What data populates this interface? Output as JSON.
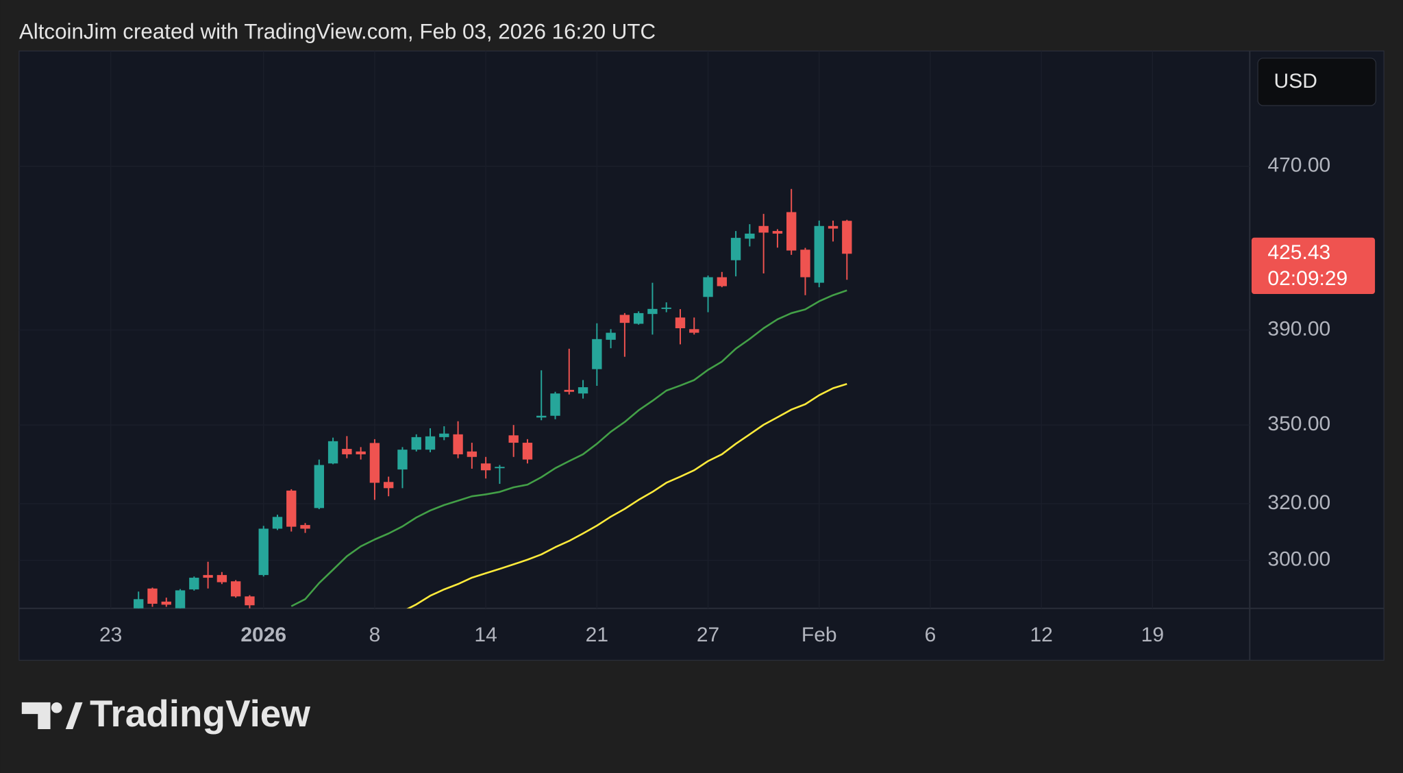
{
  "header": {
    "text": "AltcoinJim created with TradingView.com, Feb 03, 2026 16:20 UTC"
  },
  "chart_data": {
    "type": "candlestick",
    "currency": "USD",
    "scale": "log",
    "grid": true,
    "up_color": "#26a69a",
    "down_color": "#ef5350",
    "x": [
      0,
      1,
      2,
      3,
      4,
      5,
      6,
      7,
      8,
      9,
      10,
      11,
      12,
      13,
      14,
      15,
      16,
      17,
      18,
      19,
      20,
      21,
      22,
      23,
      24,
      25,
      26,
      27,
      28,
      29,
      30,
      31,
      32,
      33,
      34,
      35,
      36,
      37,
      38,
      39,
      40,
      41,
      42,
      43,
      44,
      45,
      46,
      47,
      48,
      49,
      50,
      51
    ],
    "open": [
      283,
      290.5,
      286.2,
      284,
      290.2,
      295,
      295,
      292.9,
      287.9,
      295,
      311,
      324.8,
      312.3,
      318.4,
      335,
      340.6,
      339.6,
      342.9,
      328,
      332.7,
      340.3,
      340.3,
      345.2,
      346.3,
      339.6,
      335,
      333.4,
      345.9,
      343,
      353,
      353.7,
      364.3,
      362.8,
      373,
      385.7,
      396.8,
      392.8,
      397.2,
      399.5,
      395.6,
      390.4,
      405,
      414.2,
      422.3,
      432.8,
      439.1,
      436.6,
      446.1,
      427.4,
      411.6,
      439.1,
      441.7
    ],
    "high": [
      289.5,
      290.8,
      287.5,
      290.3,
      294.5,
      299.5,
      296,
      293.3,
      288.3,
      312,
      316,
      325.3,
      313,
      336.5,
      345,
      345.6,
      341.3,
      344.4,
      330,
      341.3,
      346.3,
      348.7,
      349.5,
      351.5,
      343,
      337.5,
      334.4,
      350,
      344.4,
      372.5,
      363.5,
      381.8,
      368.4,
      393,
      390.4,
      397.6,
      398.4,
      411.6,
      402.5,
      399.4,
      395.6,
      415,
      416.7,
      436.6,
      440,
      445.2,
      437.5,
      458,
      428.3,
      441.8,
      441.8,
      442.2
    ],
    "low": [
      281,
      284.5,
      284.5,
      283,
      289.8,
      290.5,
      292,
      287.5,
      283,
      294.5,
      310.5,
      310,
      309.5,
      318,
      334.7,
      337,
      336.5,
      321.4,
      322.7,
      325.7,
      339.6,
      339.3,
      344,
      337,
      333,
      329.3,
      327.3,
      337.5,
      335,
      351.9,
      352.3,
      362.4,
      360.7,
      366,
      382,
      378.3,
      392.4,
      388,
      398,
      383.7,
      388,
      398,
      409.5,
      414.6,
      429,
      416,
      428.4,
      424.9,
      405.8,
      409.5,
      431.4,
      413
    ],
    "close": [
      287,
      285.5,
      285.2,
      289.9,
      294.1,
      294.1,
      292.6,
      287.9,
      285,
      311,
      315.2,
      311.7,
      311,
      334.4,
      343.6,
      338.5,
      338.5,
      327.7,
      325.7,
      340.3,
      345.2,
      345.5,
      346.6,
      338.5,
      337.5,
      332.4,
      333.7,
      343,
      336.5,
      353.7,
      362.8,
      363.5,
      365.4,
      386,
      388.8,
      393.2,
      397.6,
      399.5,
      400.1,
      390.8,
      388.8,
      414.2,
      410,
      433.2,
      435.3,
      435.8,
      435.3,
      427,
      414.2,
      439.1,
      437.8,
      425.43
    ],
    "series": [
      {
        "color": "#43a047",
        "values": [
          null,
          null,
          null,
          null,
          null,
          null,
          null,
          null,
          null,
          null,
          null,
          284.7,
          287,
          292.3,
          296.8,
          301.4,
          304.8,
          307.2,
          309.3,
          311.8,
          315,
          317.5,
          319.5,
          321.1,
          322.7,
          323.4,
          324.3,
          326,
          327,
          329.8,
          333.2,
          335.9,
          338.5,
          342.6,
          347.3,
          351.2,
          355.9,
          359.8,
          364,
          366.1,
          368.4,
          372.7,
          376.2,
          381.8,
          386.1,
          390.8,
          394.8,
          397.6,
          399.3,
          403,
          405.8,
          408
        ]
      },
      {
        "color": "#ffeb3b",
        "values": [
          null,
          null,
          null,
          null,
          null,
          null,
          null,
          null,
          null,
          null,
          null,
          null,
          null,
          null,
          null,
          null,
          null,
          null,
          null,
          283,
          285.3,
          288.1,
          290.2,
          292,
          294.1,
          295.6,
          297.1,
          298.6,
          300.2,
          302,
          304.5,
          306.7,
          309.3,
          312.1,
          315.3,
          318.1,
          321.4,
          324.3,
          327.7,
          330,
          332.4,
          335.9,
          338.5,
          342.6,
          346.3,
          350.1,
          353.1,
          356.2,
          358.4,
          362.1,
          365,
          366.8
        ]
      }
    ],
    "xlim": [
      -8.6,
      80
    ],
    "xticks": [
      {
        "value": -2,
        "label": "23"
      },
      {
        "value": 9,
        "label": "2026"
      },
      {
        "value": 17,
        "label": "8"
      },
      {
        "value": 25,
        "label": "14"
      },
      {
        "value": 33,
        "label": "21"
      },
      {
        "value": 41,
        "label": "27"
      },
      {
        "value": 49,
        "label": "Feb"
      },
      {
        "value": 57,
        "label": "6"
      },
      {
        "value": 65,
        "label": "12"
      },
      {
        "value": 73,
        "label": "19"
      }
    ],
    "ylim": [
      284,
      536
    ],
    "yticks": [
      {
        "value": 300,
        "label": "300.00"
      },
      {
        "value": 320,
        "label": "320.00"
      },
      {
        "value": 350,
        "label": "350.00"
      },
      {
        "value": 390,
        "label": "390.00"
      },
      {
        "value": 470,
        "label": "470.00"
      }
    ],
    "last_price": 425.43,
    "countdown": "02:09:29"
  },
  "footer": {
    "brand": "TradingView"
  }
}
